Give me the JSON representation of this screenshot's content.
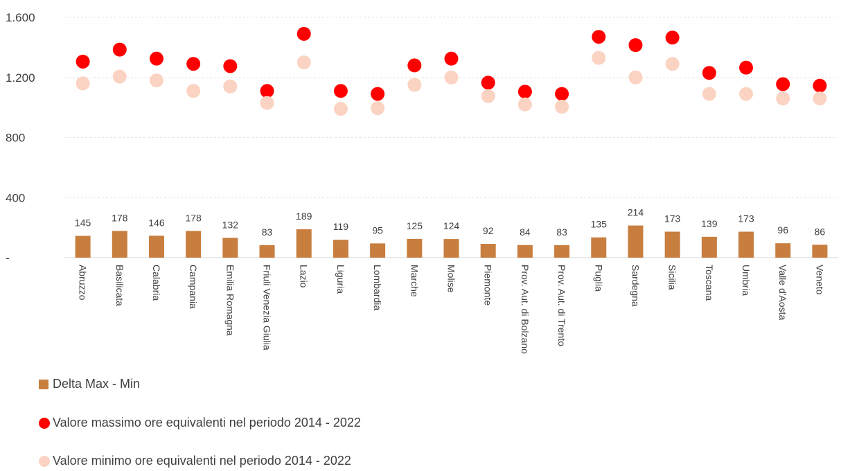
{
  "chart_data": {
    "type": "bar",
    "categories": [
      "Abruzzo",
      "Basilicata",
      "Calabria",
      "Campania",
      "Emilia Romagna",
      "Friuli Venezia Giulia",
      "Lazio",
      "Liguria",
      "Lombardia",
      "Marche",
      "Molise",
      "Piemonte",
      "Prov. Aut. di Bolzano",
      "Prov. Aut. di Trento",
      "Puglia",
      "Sardegna",
      "Sicilia",
      "Toscana",
      "Umbria",
      "Valle d'Aosta",
      "Veneto"
    ],
    "series": [
      {
        "name": "Delta Max - Min",
        "type": "bar",
        "color": "#C87E3F",
        "values": [
          145,
          178,
          146,
          178,
          132,
          83,
          189,
          119,
          95,
          125,
          124,
          92,
          84,
          83,
          135,
          214,
          173,
          139,
          173,
          96,
          86
        ]
      },
      {
        "name": "Valore massimo ore equivalenti nel periodo 2014 - 2022",
        "type": "scatter",
        "color": "#FF0000",
        "values": [
          1305,
          1385,
          1325,
          1290,
          1275,
          1110,
          1490,
          1110,
          1090,
          1280,
          1325,
          1165,
          1105,
          1090,
          1470,
          1415,
          1465,
          1230,
          1265,
          1155,
          1145
        ]
      },
      {
        "name": "Valore minimo ore equivalenti nel periodo 2014 - 2022",
        "type": "scatter",
        "color": "#FBD3C2",
        "values": [
          1160,
          1205,
          1180,
          1110,
          1140,
          1030,
          1300,
          990,
          995,
          1150,
          1200,
          1075,
          1020,
          1005,
          1330,
          1200,
          1290,
          1090,
          1090,
          1060,
          1060
        ]
      }
    ],
    "yticks": [
      "-",
      "400",
      "800",
      "1.200",
      "1.600"
    ],
    "ylim": [
      0,
      1600
    ],
    "grid": true,
    "legend_position": "bottom"
  }
}
